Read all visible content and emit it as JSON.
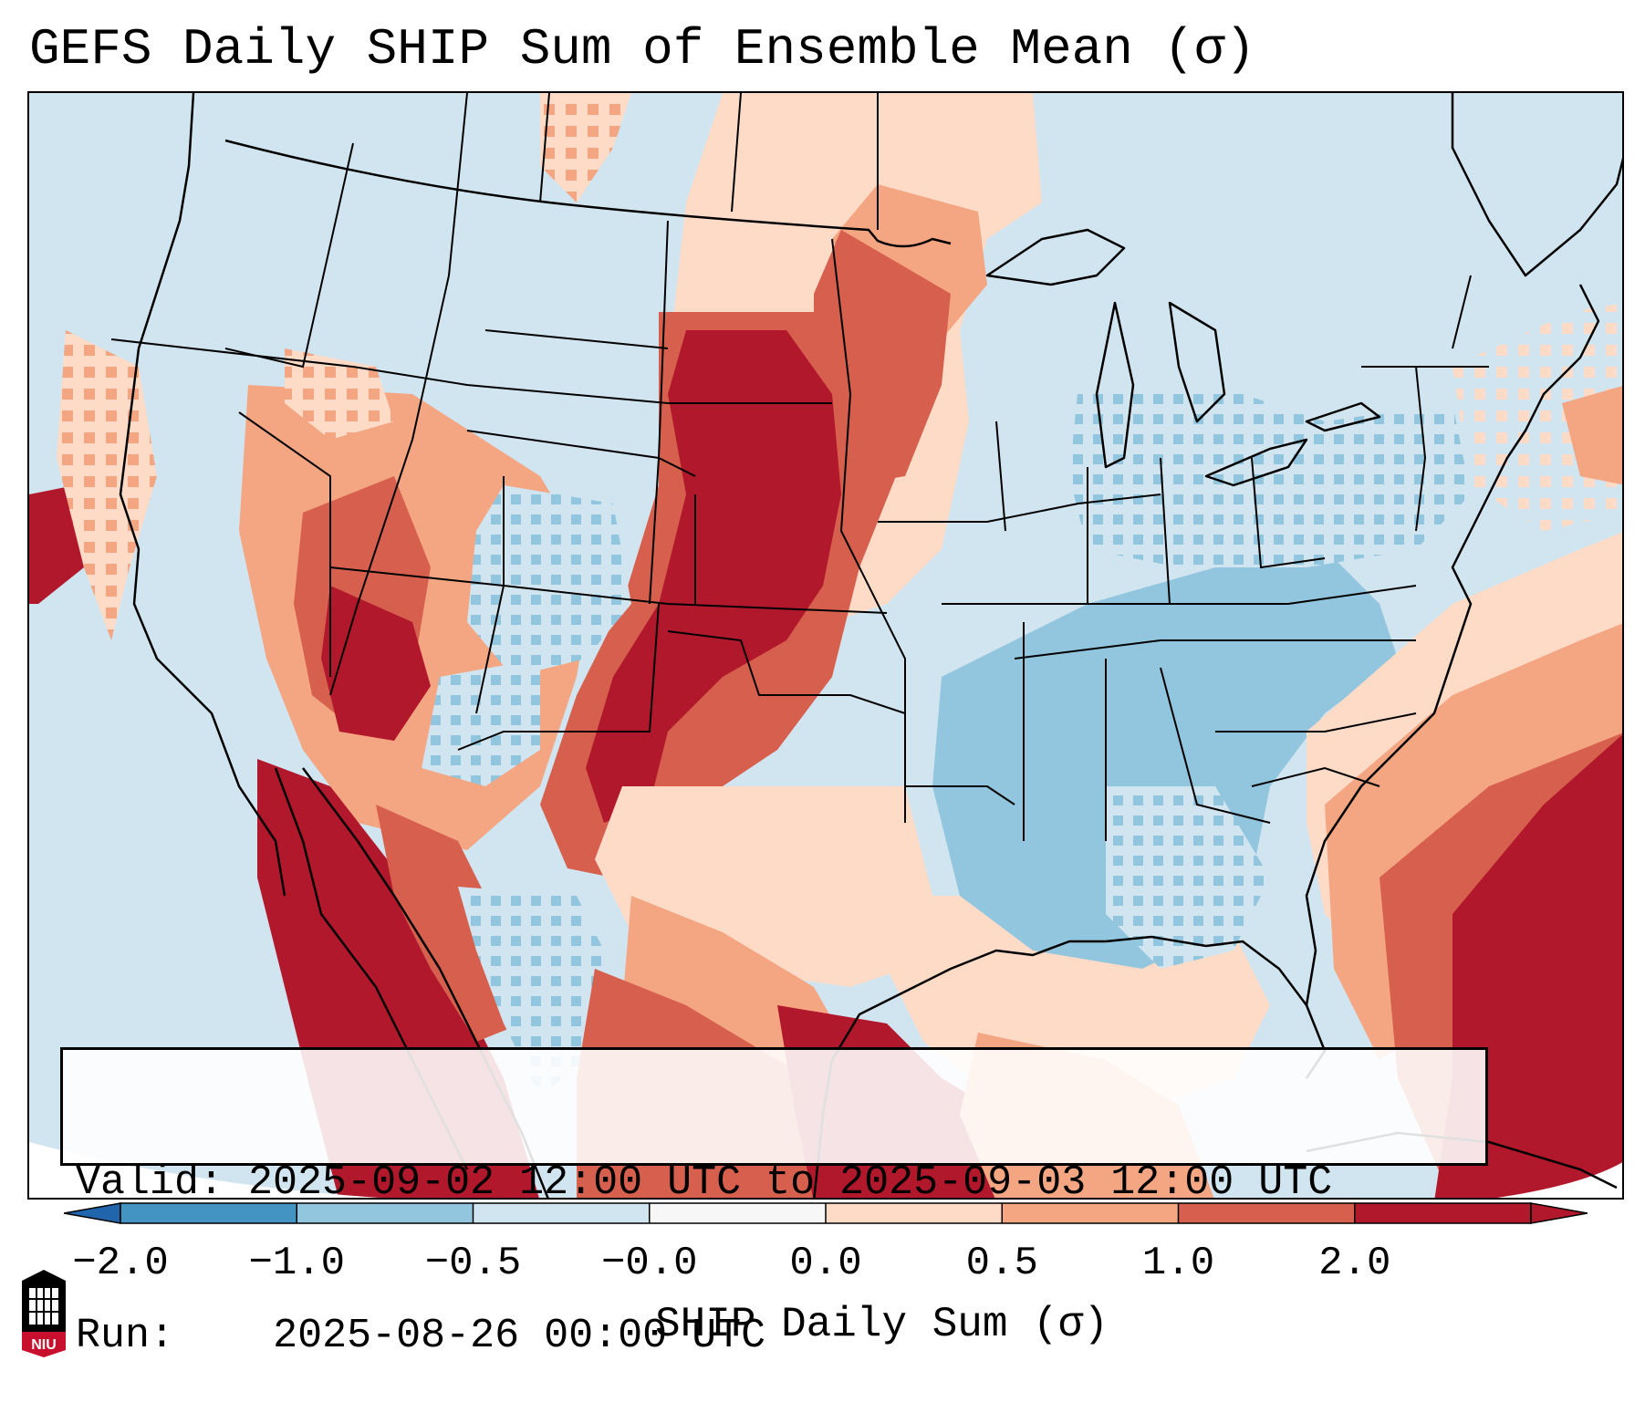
{
  "title": "GEFS Daily SHIP Sum of Ensemble Mean (σ)",
  "info": {
    "valid_label": "Valid:",
    "valid_value": "2025-09-02 12:00 UTC to 2025-09-03 12:00 UTC",
    "run_label": "Run:",
    "run_value": "2025-08-26 00:00 UTC"
  },
  "colorbar": {
    "label": "SHIP Daily Sum (σ)",
    "ticks": [
      "−2.0",
      "−1.0",
      "−0.5",
      "−0.0",
      "0.0",
      "0.5",
      "1.0",
      "2.0"
    ],
    "colors": [
      "#4393c3",
      "#92c5de",
      "#d1e5f0",
      "#f7f7f7",
      "#fddbc7",
      "#f4a582",
      "#d6604d",
      "#b2182b"
    ],
    "extend": "both"
  },
  "logo": {
    "text": "NIU",
    "colors": {
      "primary": "#c8102e",
      "dark": "#000000"
    }
  },
  "map": {
    "background_color": "#d1e5f0",
    "region": "Contiguous United States",
    "projection": "conic"
  }
}
